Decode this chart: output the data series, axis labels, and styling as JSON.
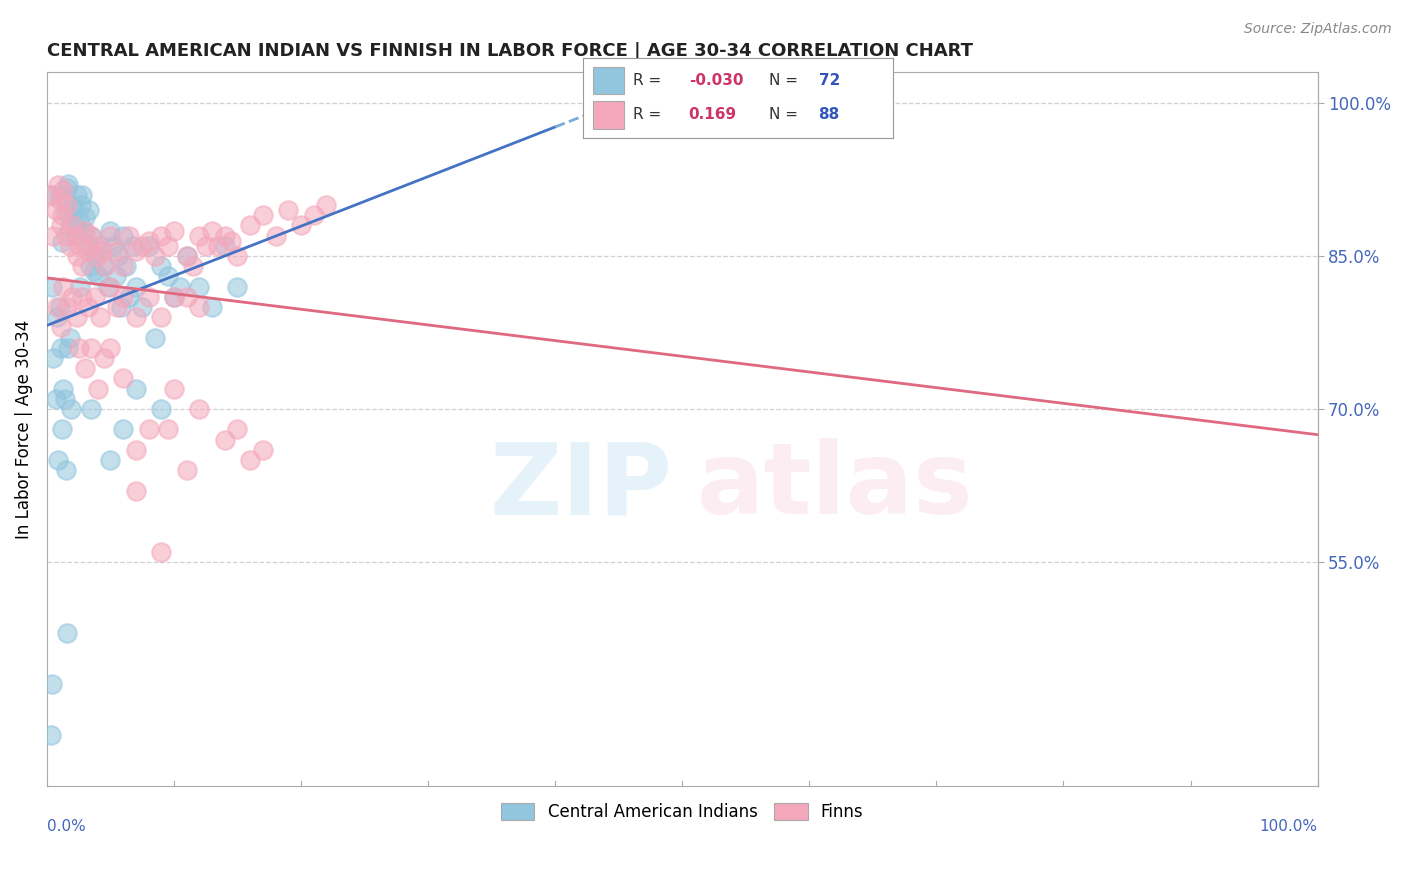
{
  "title": "CENTRAL AMERICAN INDIAN VS FINNISH IN LABOR FORCE | AGE 30-34 CORRELATION CHART",
  "source": "Source: ZipAtlas.com",
  "ylabel": "In Labor Force | Age 30-34",
  "right_yticks": [
    "100.0%",
    "85.0%",
    "70.0%",
    "55.0%"
  ],
  "right_ytick_vals": [
    1.0,
    0.85,
    0.7,
    0.55
  ],
  "legend": {
    "blue_R": "-0.030",
    "blue_N": "72",
    "pink_R": "0.169",
    "pink_N": "88"
  },
  "blue_color": "#92c5de",
  "pink_color": "#f4a7bb",
  "blue_line_solid_color": "#4472c4",
  "blue_line_dash_color": "#7aaad8",
  "pink_line_color": "#e06880",
  "legend_label_blue": "Central American Indians",
  "legend_label_pink": "Finns",
  "background_color": "#ffffff",
  "grid_color": "#cccccc",
  "R_color": "#cc3366",
  "N_color": "#3355bb",
  "title_color": "#222222",
  "axis_label_color": "#4466bb",
  "blue_scatter": [
    [
      0.3,
      91.0
    ],
    [
      1.0,
      90.9
    ],
    [
      1.2,
      86.4
    ],
    [
      1.5,
      89.3
    ],
    [
      1.6,
      91.7
    ],
    [
      1.7,
      92.1
    ],
    [
      1.8,
      87.8
    ],
    [
      2.0,
      90.0
    ],
    [
      2.1,
      89.5
    ],
    [
      2.2,
      88.0
    ],
    [
      2.3,
      87.0
    ],
    [
      2.4,
      91.0
    ],
    [
      2.5,
      88.5
    ],
    [
      2.6,
      82.0
    ],
    [
      2.7,
      90.0
    ],
    [
      2.8,
      91.0
    ],
    [
      2.9,
      87.5
    ],
    [
      3.0,
      88.8
    ],
    [
      3.2,
      86.0
    ],
    [
      3.3,
      89.5
    ],
    [
      3.4,
      84.0
    ],
    [
      3.5,
      87.0
    ],
    [
      3.7,
      83.5
    ],
    [
      3.8,
      85.0
    ],
    [
      4.0,
      83.0
    ],
    [
      4.2,
      86.0
    ],
    [
      4.5,
      84.0
    ],
    [
      4.8,
      82.0
    ],
    [
      5.0,
      87.5
    ],
    [
      5.2,
      86.0
    ],
    [
      5.4,
      83.0
    ],
    [
      5.6,
      85.0
    ],
    [
      5.8,
      80.0
    ],
    [
      6.0,
      87.0
    ],
    [
      6.2,
      84.0
    ],
    [
      6.5,
      81.0
    ],
    [
      6.8,
      86.0
    ],
    [
      7.0,
      82.0
    ],
    [
      7.5,
      80.0
    ],
    [
      8.0,
      86.0
    ],
    [
      8.5,
      77.0
    ],
    [
      9.0,
      84.0
    ],
    [
      9.5,
      83.0
    ],
    [
      10.0,
      81.0
    ],
    [
      10.5,
      82.0
    ],
    [
      11.0,
      85.0
    ],
    [
      12.0,
      82.0
    ],
    [
      13.0,
      80.0
    ],
    [
      14.0,
      86.0
    ],
    [
      15.0,
      82.0
    ],
    [
      0.5,
      75.0
    ],
    [
      0.7,
      71.0
    ],
    [
      0.9,
      65.0
    ],
    [
      0.8,
      79.0
    ],
    [
      0.4,
      82.0
    ],
    [
      1.0,
      80.0
    ],
    [
      1.1,
      76.0
    ],
    [
      1.2,
      68.0
    ],
    [
      1.3,
      72.0
    ],
    [
      1.4,
      71.0
    ],
    [
      1.5,
      64.0
    ],
    [
      1.6,
      48.0
    ],
    [
      1.7,
      76.0
    ],
    [
      1.8,
      77.0
    ],
    [
      1.9,
      70.0
    ],
    [
      3.5,
      70.0
    ],
    [
      5.0,
      65.0
    ],
    [
      6.0,
      68.0
    ],
    [
      7.0,
      72.0
    ],
    [
      9.0,
      70.0
    ],
    [
      0.3,
      38.0
    ],
    [
      0.4,
      43.0
    ]
  ],
  "pink_scatter": [
    [
      0.3,
      91.0
    ],
    [
      0.5,
      87.0
    ],
    [
      0.7,
      89.5
    ],
    [
      0.9,
      92.0
    ],
    [
      1.0,
      90.5
    ],
    [
      1.1,
      88.0
    ],
    [
      1.2,
      89.0
    ],
    [
      1.3,
      91.5
    ],
    [
      1.5,
      87.0
    ],
    [
      1.6,
      90.0
    ],
    [
      1.8,
      86.0
    ],
    [
      2.0,
      88.0
    ],
    [
      2.2,
      87.0
    ],
    [
      2.4,
      85.0
    ],
    [
      2.6,
      86.0
    ],
    [
      2.8,
      84.0
    ],
    [
      3.0,
      87.5
    ],
    [
      3.2,
      85.5
    ],
    [
      3.5,
      87.0
    ],
    [
      3.7,
      86.0
    ],
    [
      4.0,
      85.0
    ],
    [
      4.3,
      85.5
    ],
    [
      4.6,
      84.0
    ],
    [
      5.0,
      87.0
    ],
    [
      5.5,
      85.5
    ],
    [
      6.0,
      84.0
    ],
    [
      6.5,
      87.0
    ],
    [
      7.0,
      85.5
    ],
    [
      7.5,
      86.0
    ],
    [
      8.0,
      86.5
    ],
    [
      8.5,
      85.0
    ],
    [
      9.0,
      87.0
    ],
    [
      9.5,
      86.0
    ],
    [
      10.0,
      87.5
    ],
    [
      11.0,
      85.0
    ],
    [
      11.5,
      84.0
    ],
    [
      12.0,
      87.0
    ],
    [
      12.5,
      86.0
    ],
    [
      13.0,
      87.5
    ],
    [
      13.5,
      86.0
    ],
    [
      14.0,
      87.0
    ],
    [
      14.5,
      86.5
    ],
    [
      15.0,
      85.0
    ],
    [
      16.0,
      88.0
    ],
    [
      17.0,
      89.0
    ],
    [
      18.0,
      87.0
    ],
    [
      19.0,
      89.5
    ],
    [
      20.0,
      88.0
    ],
    [
      21.0,
      89.0
    ],
    [
      22.0,
      90.0
    ],
    [
      0.8,
      80.0
    ],
    [
      1.1,
      78.0
    ],
    [
      1.3,
      82.0
    ],
    [
      1.6,
      80.0
    ],
    [
      2.0,
      81.0
    ],
    [
      2.4,
      79.0
    ],
    [
      2.8,
      81.0
    ],
    [
      3.2,
      80.0
    ],
    [
      3.8,
      81.0
    ],
    [
      4.2,
      79.0
    ],
    [
      5.0,
      82.0
    ],
    [
      5.5,
      80.0
    ],
    [
      6.0,
      81.0
    ],
    [
      7.0,
      79.0
    ],
    [
      8.0,
      81.0
    ],
    [
      9.0,
      79.0
    ],
    [
      10.0,
      81.0
    ],
    [
      11.0,
      81.0
    ],
    [
      12.0,
      80.0
    ],
    [
      2.5,
      76.0
    ],
    [
      3.0,
      74.0
    ],
    [
      3.5,
      76.0
    ],
    [
      4.0,
      72.0
    ],
    [
      4.5,
      75.0
    ],
    [
      5.0,
      76.0
    ],
    [
      6.0,
      73.0
    ],
    [
      7.0,
      66.0
    ],
    [
      8.0,
      68.0
    ],
    [
      9.5,
      68.0
    ],
    [
      10.0,
      72.0
    ],
    [
      11.0,
      64.0
    ],
    [
      12.0,
      70.0
    ],
    [
      14.0,
      67.0
    ],
    [
      15.0,
      68.0
    ],
    [
      16.0,
      65.0
    ],
    [
      17.0,
      66.0
    ],
    [
      9.0,
      56.0
    ],
    [
      7.0,
      62.0
    ]
  ],
  "xlim": [
    0,
    100
  ],
  "ylim": [
    33,
    103
  ],
  "xtick_positions": [
    0,
    10,
    20,
    30,
    40,
    50,
    60,
    70,
    80,
    90,
    100
  ]
}
